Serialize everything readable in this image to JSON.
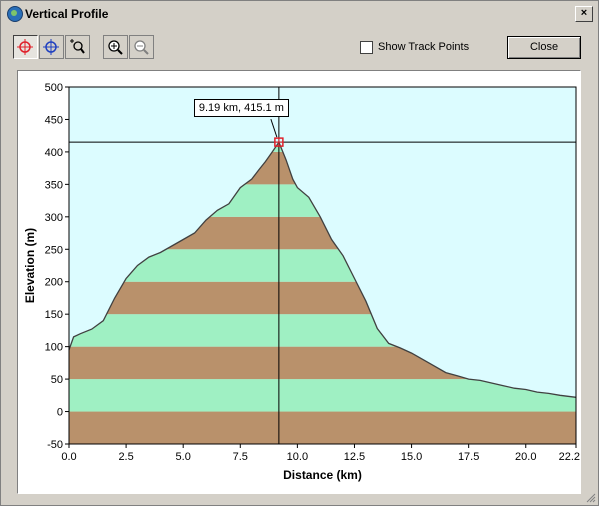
{
  "window": {
    "title": "Vertical Profile",
    "close_glyph": "×"
  },
  "toolbar": {
    "buttons": [
      {
        "name": "crosshair-red-icon",
        "active": true
      },
      {
        "name": "crosshair-blue-icon",
        "active": false
      },
      {
        "name": "zoom-box-icon",
        "active": false
      },
      {
        "name": "zoom-in-icon",
        "active": false
      },
      {
        "name": "zoom-out-icon",
        "active": false
      }
    ]
  },
  "show_track_points": {
    "label": "Show Track Points",
    "checked": false
  },
  "close_button": {
    "label": "Close"
  },
  "tooltip": {
    "text": "9.19 km, 415.1 m"
  },
  "colors": {
    "sky": "#dcfcff",
    "band_brown": "#b9916b",
    "band_green": "#9ff0c3",
    "outline": "#404040",
    "marker": "#e0202a"
  },
  "chart_data": {
    "type": "area",
    "xlabel": "Distance  (km)",
    "ylabel": "Elevation (m)",
    "xlim": [
      0,
      22.2
    ],
    "ylim": [
      -50,
      500
    ],
    "x_ticks": [
      "0.0",
      "2.5",
      "5.0",
      "7.5",
      "10.0",
      "12.5",
      "15.0",
      "17.5",
      "20.0",
      "22.2"
    ],
    "y_ticks": [
      "500",
      "450",
      "400",
      "350",
      "300",
      "250",
      "200",
      "150",
      "100",
      "50",
      "0",
      "-50"
    ],
    "cursor": {
      "x": 9.19,
      "y": 415.1
    },
    "bands": [
      {
        "from": -50,
        "to": 0,
        "color": "brown"
      },
      {
        "from": 0,
        "to": 50,
        "color": "green"
      },
      {
        "from": 50,
        "to": 100,
        "color": "brown"
      },
      {
        "from": 100,
        "to": 150,
        "color": "green"
      },
      {
        "from": 150,
        "to": 200,
        "color": "brown"
      },
      {
        "from": 200,
        "to": 250,
        "color": "green"
      },
      {
        "from": 250,
        "to": 300,
        "color": "brown"
      },
      {
        "from": 300,
        "to": 350,
        "color": "green"
      },
      {
        "from": 350,
        "to": 400,
        "color": "brown"
      },
      {
        "from": 400,
        "to": 450,
        "color": "green"
      },
      {
        "from": 450,
        "to": 500,
        "color": "brown"
      }
    ],
    "x": [
      0,
      0.2,
      0.5,
      1.0,
      1.5,
      2.0,
      2.5,
      3.0,
      3.5,
      4.0,
      4.5,
      5.0,
      5.5,
      6.0,
      6.5,
      7.0,
      7.5,
      8.0,
      8.3,
      8.6,
      8.9,
      9.19,
      9.5,
      9.8,
      10.0,
      10.5,
      11.0,
      11.5,
      12.0,
      12.5,
      13.0,
      13.5,
      14.0,
      14.5,
      15.0,
      15.5,
      16.0,
      16.5,
      17.0,
      17.5,
      18.0,
      18.5,
      19.0,
      19.5,
      20.0,
      20.5,
      21.0,
      21.5,
      22.2
    ],
    "y": [
      95,
      115,
      120,
      127,
      140,
      175,
      205,
      225,
      238,
      245,
      255,
      265,
      275,
      295,
      310,
      320,
      345,
      358,
      372,
      385,
      400,
      415,
      388,
      358,
      345,
      330,
      300,
      265,
      240,
      205,
      170,
      128,
      105,
      98,
      90,
      80,
      70,
      60,
      55,
      50,
      48,
      44,
      40,
      36,
      34,
      30,
      28,
      25,
      22
    ]
  }
}
